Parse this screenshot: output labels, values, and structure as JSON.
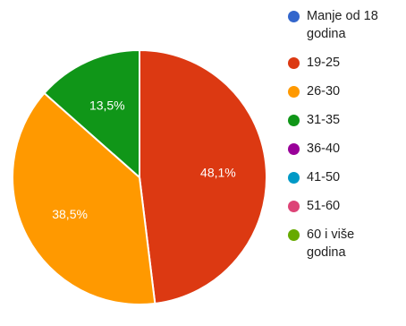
{
  "chart_data": {
    "type": "pie",
    "title": "",
    "categories": [
      "Manje od 18\ngodina",
      "19-25",
      "26-30",
      "31-35",
      "36-40",
      "41-50",
      "51-60",
      "60 i više\ngodina"
    ],
    "values": [
      0,
      48.1,
      38.5,
      13.5,
      0,
      0,
      0,
      0
    ],
    "data_labels": [
      "",
      "48,1%",
      "38,5%",
      "13,5%",
      "",
      "",
      "",
      ""
    ],
    "colors": [
      "#3366cc",
      "#dc3912",
      "#ff9900",
      "#109618",
      "#990099",
      "#0099c6",
      "#dd4477",
      "#66aa00"
    ],
    "label_colors": [
      "#ffffff",
      "#ffffff",
      "#ffffff",
      "#ffffff",
      "#ffffff",
      "#ffffff",
      "#ffffff",
      "#ffffff"
    ],
    "legend_position": "right",
    "start_angle_deg": 0,
    "direction": "clockwise"
  }
}
